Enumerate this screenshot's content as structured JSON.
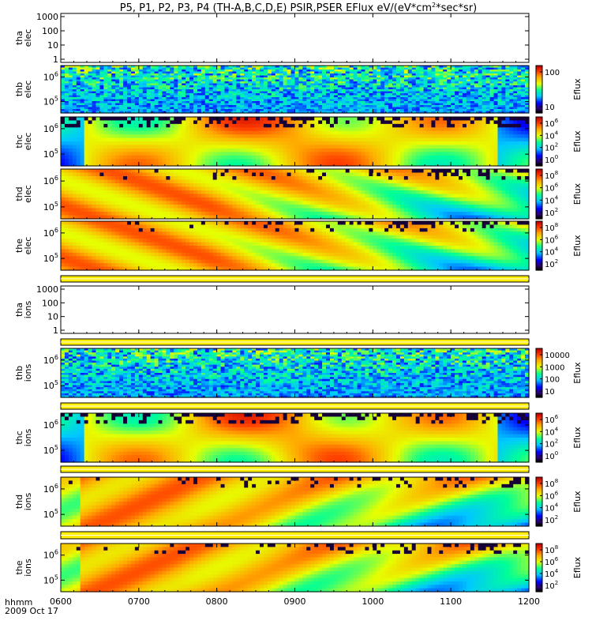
{
  "title": "P5, P1, P2, P3, P4 (TH-A,B,C,D,E) PSIR,PSER EFlux eV/(eV*cm",
  "title_sup": "2",
  "title_tail": "*sec*sr)",
  "footer": {
    "time_label": "hhmm",
    "date_label": "2009 Oct 17"
  },
  "colors": {
    "axis": "#000000",
    "divider": "#ffee00",
    "background": "#ffffff"
  },
  "chart_data": {
    "type": "heatmap",
    "x": {
      "ticks": [
        "0600",
        "0700",
        "0800",
        "0900",
        "1000",
        "1100",
        "1200"
      ],
      "range": [
        "06:00",
        "12:00"
      ]
    },
    "panels": [
      {
        "id": "tha_elec",
        "label": [
          "tha",
          "elec"
        ],
        "kind": "empty",
        "yticks": [
          "1000",
          "100",
          "10",
          "1"
        ],
        "colorbar": null
      },
      {
        "id": "thb_elec",
        "label": [
          "thb",
          "elec"
        ],
        "kind": "noise",
        "yticks": [
          {
            "base": "10",
            "exp": "6"
          },
          {
            "base": "10",
            "exp": "5"
          }
        ],
        "colorbar": {
          "label": "Eflux",
          "ticks": [
            "100",
            "10"
          ],
          "scale": "log"
        }
      },
      {
        "id": "thc_elec",
        "label": [
          "thc",
          "elec"
        ],
        "kind": "thc",
        "yticks": [
          {
            "base": "10",
            "exp": "6"
          },
          {
            "base": "10",
            "exp": "5"
          }
        ],
        "colorbar": {
          "label": "Eflux",
          "ticks": [
            {
              "base": "10",
              "exp": "6"
            },
            {
              "base": "10",
              "exp": "4"
            },
            {
              "base": "10",
              "exp": "2"
            },
            {
              "base": "10",
              "exp": "0"
            }
          ],
          "scale": "log"
        }
      },
      {
        "id": "thd_elec",
        "label": [
          "thd",
          "elec"
        ],
        "kind": "thde",
        "yticks": [
          {
            "base": "10",
            "exp": "6"
          },
          {
            "base": "10",
            "exp": "5"
          }
        ],
        "colorbar": {
          "label": "Eflux",
          "ticks": [
            {
              "base": "10",
              "exp": "8"
            },
            {
              "base": "10",
              "exp": "6"
            },
            {
              "base": "10",
              "exp": "4"
            },
            {
              "base": "10",
              "exp": "2"
            }
          ],
          "scale": "log"
        }
      },
      {
        "id": "the_elec",
        "label": [
          "the",
          "elec"
        ],
        "kind": "thde",
        "yticks": [
          {
            "base": "10",
            "exp": "6"
          },
          {
            "base": "10",
            "exp": "5"
          }
        ],
        "colorbar": {
          "label": "Eflux",
          "ticks": [
            {
              "base": "10",
              "exp": "8"
            },
            {
              "base": "10",
              "exp": "6"
            },
            {
              "base": "10",
              "exp": "4"
            },
            {
              "base": "10",
              "exp": "2"
            }
          ],
          "scale": "log"
        }
      },
      {
        "id": "tha_ions",
        "label": [
          "tha",
          "ions"
        ],
        "kind": "empty",
        "yticks": [
          "1000",
          "100",
          "10",
          "1"
        ],
        "colorbar": null
      },
      {
        "id": "thb_ions",
        "label": [
          "thb",
          "ions"
        ],
        "kind": "noise",
        "yticks": [
          {
            "base": "10",
            "exp": "6"
          },
          {
            "base": "10",
            "exp": "5"
          }
        ],
        "colorbar": {
          "label": "Eflux",
          "ticks": [
            "10000",
            "1000",
            "100",
            "10"
          ],
          "scale": "log"
        }
      },
      {
        "id": "thc_ions",
        "label": [
          "thc",
          "ions"
        ],
        "kind": "thc",
        "yticks": [
          {
            "base": "10",
            "exp": "6"
          },
          {
            "base": "10",
            "exp": "5"
          }
        ],
        "colorbar": {
          "label": "Eflux",
          "ticks": [
            {
              "base": "10",
              "exp": "6"
            },
            {
              "base": "10",
              "exp": "4"
            },
            {
              "base": "10",
              "exp": "2"
            },
            {
              "base": "10",
              "exp": "0"
            }
          ],
          "scale": "log"
        }
      },
      {
        "id": "thd_ions",
        "label": [
          "thd",
          "ions"
        ],
        "kind": "thdi",
        "yticks": [
          {
            "base": "10",
            "exp": "6"
          },
          {
            "base": "10",
            "exp": "5"
          }
        ],
        "colorbar": {
          "label": "Eflux",
          "ticks": [
            {
              "base": "10",
              "exp": "8"
            },
            {
              "base": "10",
              "exp": "6"
            },
            {
              "base": "10",
              "exp": "4"
            },
            {
              "base": "10",
              "exp": "2"
            }
          ],
          "scale": "log"
        }
      },
      {
        "id": "the_ions",
        "label": [
          "the",
          "ions"
        ],
        "kind": "thdi",
        "yticks": [
          {
            "base": "10",
            "exp": "6"
          },
          {
            "base": "10",
            "exp": "5"
          }
        ],
        "colorbar": {
          "label": "Eflux",
          "ticks": [
            {
              "base": "10",
              "exp": "8"
            },
            {
              "base": "10",
              "exp": "6"
            },
            {
              "base": "10",
              "exp": "4"
            },
            {
              "base": "10",
              "exp": "2"
            }
          ],
          "scale": "log"
        }
      }
    ]
  }
}
